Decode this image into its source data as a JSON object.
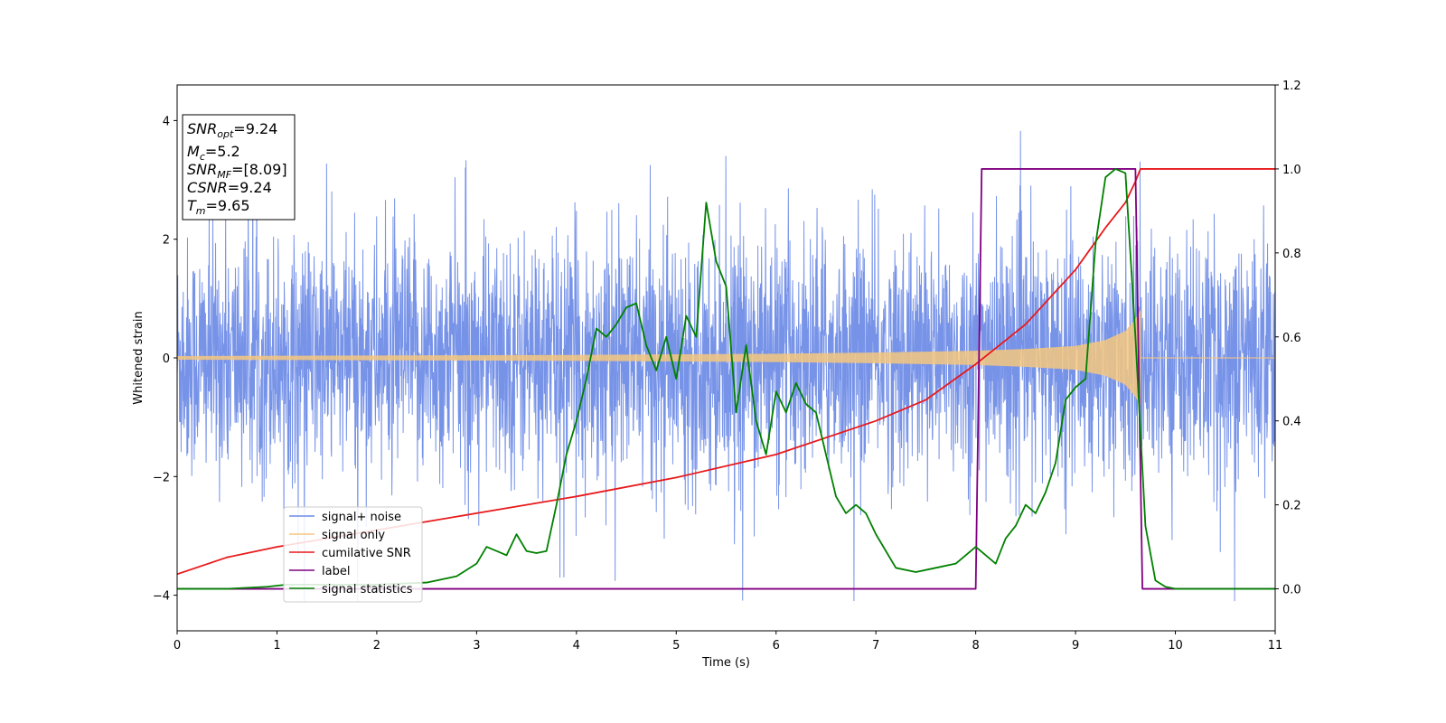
{
  "chart_data": {
    "type": "line",
    "title": "",
    "xlabel": "Time (s)",
    "ylabel": "Whitened strain",
    "xlim": [
      0,
      11
    ],
    "ylim": [
      -4.6,
      4.6
    ],
    "y2lim": [
      -0.1,
      1.2
    ],
    "xticks": [
      "0",
      "1",
      "2",
      "3",
      "4",
      "5",
      "6",
      "7",
      "8",
      "9",
      "10",
      "11"
    ],
    "yticks": [
      "−4",
      "−2",
      "0",
      "2",
      "4"
    ],
    "y2ticks": [
      "0.0",
      "0.2",
      "0.4",
      "0.6",
      "0.8",
      "1.0",
      "1.2"
    ],
    "grid": false,
    "legend_position": "lower-left",
    "annotation": {
      "snr_opt": {
        "base": "SNR",
        "sub": "opt",
        "value": "=9.24"
      },
      "mc": {
        "base": "M",
        "sub": "c",
        "value": "=5.2"
      },
      "snr_mf": {
        "base": "SNR",
        "sub": "MF",
        "value": "=[8.09]"
      },
      "csnr": {
        "base": "CSNR",
        "value": "=9.24"
      },
      "tm": {
        "base": "T",
        "sub": "m",
        "value": "=9.65"
      }
    },
    "series": [
      {
        "name": "signal+ noise",
        "color": "#6b8ae6",
        "axis": "left",
        "description_values": "noise band spanning about -3 to 3, spikes to ±4"
      },
      {
        "name": "signal only",
        "color": "#f5c77e",
        "axis": "left",
        "amplitude_envelope": {
          "x": [
            0,
            2,
            4,
            6,
            7,
            8,
            8.5,
            9,
            9.3,
            9.5,
            9.6,
            9.65
          ],
          "amp": [
            0.03,
            0.04,
            0.05,
            0.07,
            0.09,
            0.12,
            0.15,
            0.2,
            0.3,
            0.45,
            0.65,
            0.8
          ]
        }
      },
      {
        "name": "cumilative SNR",
        "color": "#e8191b",
        "axis": "right",
        "x": [
          0,
          0.5,
          1,
          2,
          3,
          4,
          5,
          6,
          7,
          7.5,
          8,
          8.5,
          9,
          9.3,
          9.5,
          9.6,
          9.65,
          11
        ],
        "y": [
          0.035,
          0.075,
          0.1,
          0.14,
          0.18,
          0.22,
          0.265,
          0.32,
          0.4,
          0.45,
          0.535,
          0.63,
          0.76,
          0.86,
          0.92,
          0.97,
          1.0,
          1.0
        ]
      },
      {
        "name": "label",
        "color": "#800080",
        "axis": "right",
        "x": [
          0,
          8.0,
          8.06,
          9.6,
          9.67,
          11
        ],
        "y": [
          0,
          0,
          1,
          1,
          0,
          0
        ]
      },
      {
        "name": "signal statistics",
        "color": "#008000",
        "axis": "right",
        "x": [
          0,
          0.5,
          0.9,
          1.1,
          1.5,
          2.0,
          2.5,
          2.8,
          3.0,
          3.1,
          3.2,
          3.3,
          3.4,
          3.5,
          3.6,
          3.7,
          3.8,
          3.9,
          4.0,
          4.1,
          4.2,
          4.3,
          4.4,
          4.5,
          4.6,
          4.7,
          4.8,
          4.9,
          5.0,
          5.1,
          5.2,
          5.3,
          5.4,
          5.5,
          5.6,
          5.7,
          5.8,
          5.9,
          6.0,
          6.1,
          6.2,
          6.3,
          6.4,
          6.5,
          6.6,
          6.7,
          6.8,
          6.9,
          7.0,
          7.2,
          7.4,
          7.6,
          7.8,
          8.0,
          8.1,
          8.2,
          8.3,
          8.4,
          8.5,
          8.6,
          8.7,
          8.8,
          8.9,
          9.0,
          9.1,
          9.2,
          9.3,
          9.4,
          9.5,
          9.6,
          9.7,
          9.8,
          9.9,
          10.0,
          11.0
        ],
        "y": [
          0,
          0,
          0.005,
          0.01,
          0.01,
          0.01,
          0.015,
          0.03,
          0.06,
          0.1,
          0.09,
          0.08,
          0.13,
          0.09,
          0.085,
          0.09,
          0.2,
          0.32,
          0.4,
          0.5,
          0.62,
          0.6,
          0.63,
          0.67,
          0.68,
          0.58,
          0.52,
          0.6,
          0.5,
          0.65,
          0.6,
          0.92,
          0.78,
          0.72,
          0.42,
          0.58,
          0.4,
          0.32,
          0.47,
          0.42,
          0.49,
          0.44,
          0.42,
          0.32,
          0.22,
          0.18,
          0.2,
          0.18,
          0.13,
          0.05,
          0.04,
          0.05,
          0.06,
          0.1,
          0.08,
          0.06,
          0.12,
          0.15,
          0.2,
          0.18,
          0.23,
          0.3,
          0.45,
          0.48,
          0.5,
          0.82,
          0.98,
          1.0,
          0.99,
          0.6,
          0.15,
          0.02,
          0.005,
          0.0,
          0.0
        ]
      }
    ]
  }
}
